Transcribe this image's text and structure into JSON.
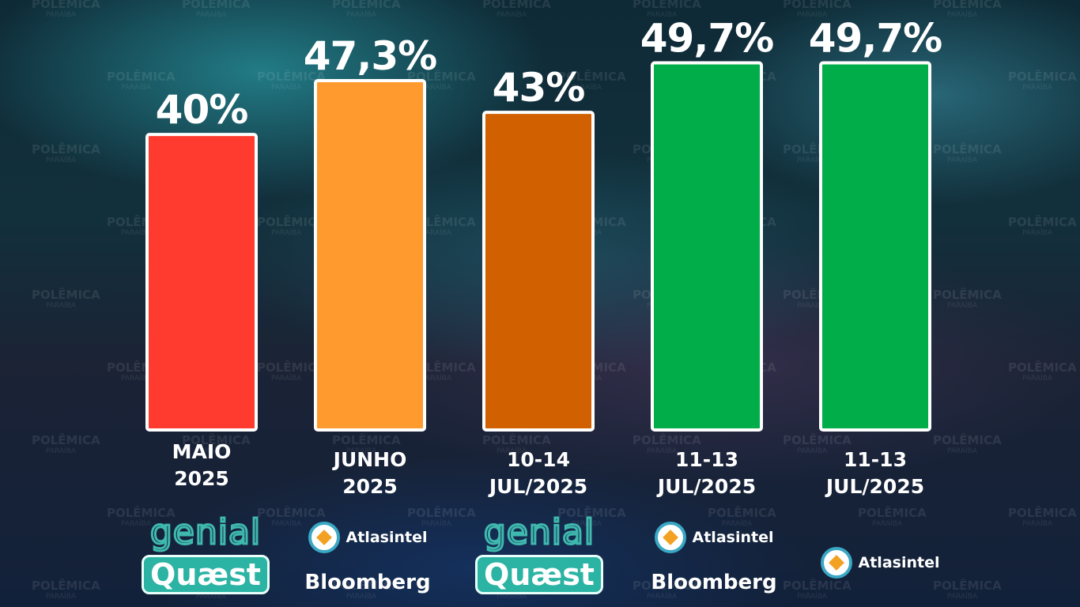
{
  "colors": {
    "bar_red": "#ff3b30",
    "bar_orange": "#ff9a2e",
    "bar_dark_orange": "#d06000",
    "bar_green": "#00ad48",
    "label": "#ffffff"
  },
  "watermark": {
    "brand": "POLÊMICA",
    "sub": "PARAÍBA"
  },
  "chart_data": {
    "type": "bar",
    "categories": [
      [
        "MAIO",
        "2025"
      ],
      [
        "JUNHO",
        "2025"
      ],
      [
        "10-14",
        "JUL/2025"
      ],
      [
        "11-13",
        "JUL/2025"
      ],
      [
        "11-13",
        "JUL/2025"
      ]
    ],
    "values": [
      40,
      47.3,
      43,
      49.7,
      49.7
    ],
    "value_labels": [
      "40%",
      "47,3%",
      "43%",
      "49,7%",
      "49,7%"
    ],
    "bar_colors": [
      "#ff3b30",
      "#ff9a2e",
      "#d06000",
      "#00ad48",
      "#00ad48"
    ],
    "ylim": [
      0,
      55
    ],
    "grid": false,
    "legend": "none"
  },
  "sources": [
    {
      "line1": "genial",
      "line2": "Quæst"
    },
    {
      "line1": "Atlasintel",
      "line2": "Bloomberg"
    },
    {
      "line1": "genial",
      "line2": "Quæst"
    },
    {
      "line1": "Atlasintel",
      "line2": "Bloomberg"
    },
    {
      "line1": "Atlasintel"
    }
  ]
}
